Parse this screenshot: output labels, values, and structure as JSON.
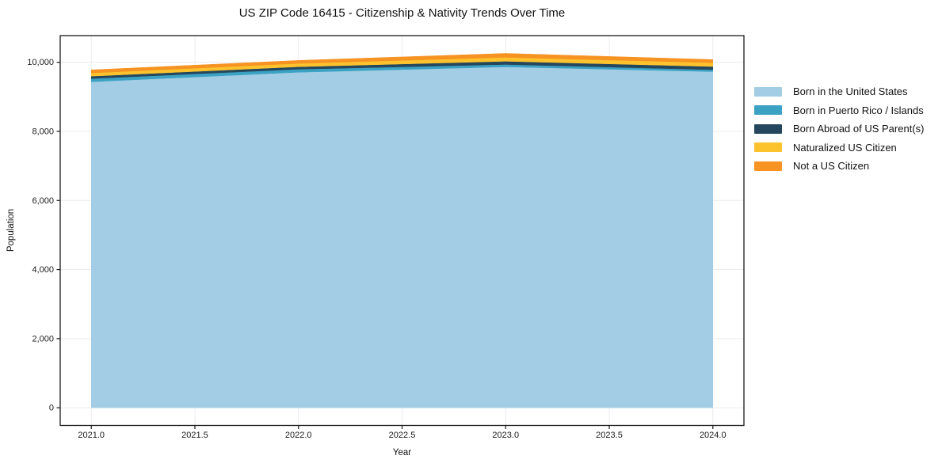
{
  "chart_data": {
    "type": "area",
    "stacked": true,
    "title": "US ZIP Code 16415 - Citizenship & Nativity Trends Over Time",
    "xlabel": "Year",
    "ylabel": "Population",
    "x": [
      2021,
      2022,
      2023,
      2024
    ],
    "series": [
      {
        "name": "Born in the United States",
        "color": "#a2cde4",
        "values": [
          9437,
          9712,
          9868,
          9731
        ]
      },
      {
        "name": "Born in Puerto Rico / Islands",
        "color": "#3ba2c4",
        "values": [
          92,
          88,
          70,
          55
        ]
      },
      {
        "name": "Born Abroad of US Parent(s)",
        "color": "#25475d",
        "values": [
          70,
          72,
          92,
          92
        ]
      },
      {
        "name": "Naturalized US Citizen",
        "color": "#fcc32f",
        "values": [
          92,
          95,
          114,
          110
        ]
      },
      {
        "name": "Not a US Citizen",
        "color": "#f69322",
        "values": [
          90,
          88,
          114,
          92
        ]
      }
    ],
    "totals": [
      9781,
      10055,
      10258,
      10080
    ],
    "xlim": [
      2020.85,
      2024.15
    ],
    "ylim": [
      -513,
      10773
    ],
    "x_ticks": {
      "values": [
        2021.0,
        2021.5,
        2022.0,
        2022.5,
        2023.0,
        2023.5,
        2024.0
      ],
      "labels": [
        "2021.0",
        "2021.5",
        "2022.0",
        "2022.5",
        "2023.0",
        "2023.5",
        "2024.0"
      ]
    },
    "y_ticks": {
      "values": [
        0,
        2000,
        4000,
        6000,
        8000,
        10000
      ],
      "labels": [
        "0",
        "2,000",
        "4,000",
        "6,000",
        "8,000",
        "10,000"
      ]
    },
    "grid": true,
    "legend_position": "right-outside",
    "colors": {
      "background": "#ffffff",
      "gridline": "#ececec",
      "spine": "#1a1a1a",
      "text": "#111111"
    }
  }
}
